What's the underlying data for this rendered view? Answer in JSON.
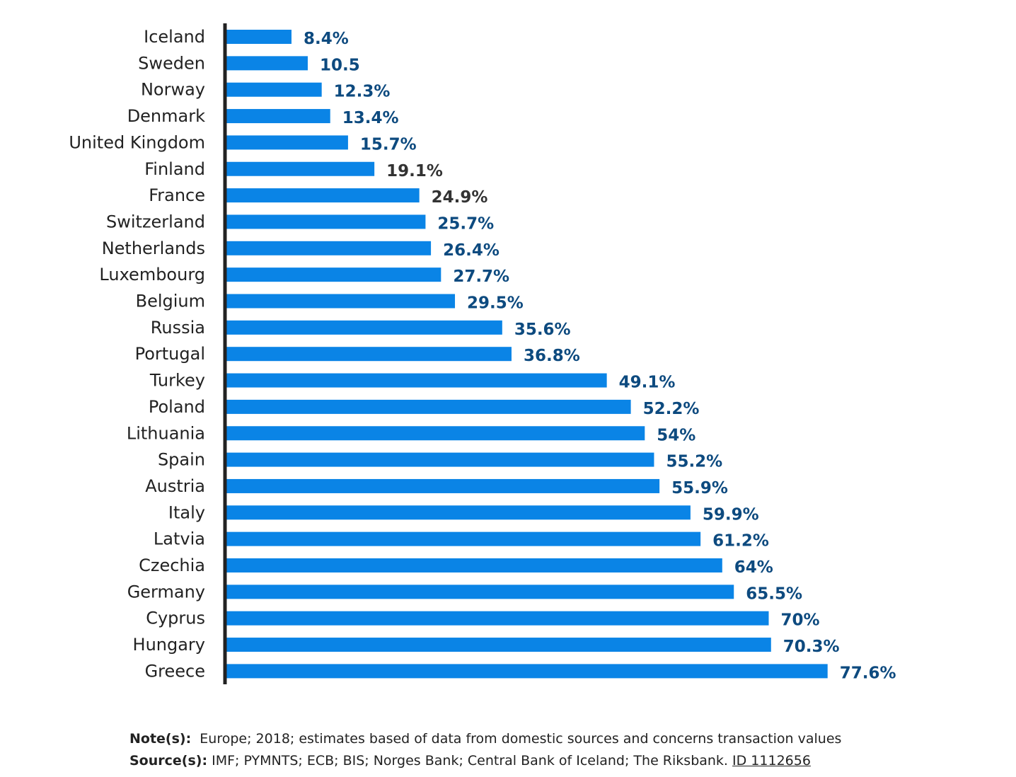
{
  "chart_data": {
    "type": "bar",
    "orientation": "horizontal",
    "categories": [
      "Iceland",
      "Sweden",
      "Norway",
      "Denmark",
      "United Kingdom",
      "Finland",
      "France",
      "Switzerland",
      "Netherlands",
      "Luxembourg",
      "Belgium",
      "Russia",
      "Portugal",
      "Turkey",
      "Poland",
      "Lithuania",
      "Spain",
      "Austria",
      "Italy",
      "Latvia",
      "Czechia",
      "Germany",
      "Cyprus",
      "Hungary",
      "Greece"
    ],
    "values": [
      8.4,
      10.5,
      12.3,
      13.4,
      15.7,
      19.1,
      24.9,
      25.7,
      26.4,
      27.7,
      29.5,
      35.6,
      36.8,
      49.1,
      52.2,
      54,
      55.2,
      55.9,
      59.9,
      61.2,
      64,
      65.5,
      70,
      70.3,
      77.6
    ],
    "data_labels": [
      "8.4%",
      "10.5",
      "12.3%",
      "13.4%",
      "15.7%",
      "19.1%",
      "24.9%",
      "25.7%",
      "26.4%",
      "27.7%",
      "29.5%",
      "35.6%",
      "36.8%",
      "49.1%",
      "52.2%",
      "54%",
      "55.2%",
      "55.9%",
      "59.9%",
      "61.2%",
      "64%",
      "65.5%",
      "70%",
      "70.3%",
      "77.6%"
    ],
    "label_colors": [
      "#0d4a7f",
      "#0d4a7f",
      "#0d4a7f",
      "#0d4a7f",
      "#0d4a7f",
      "#333333",
      "#333333",
      "#0d4a7f",
      "#0d4a7f",
      "#0d4a7f",
      "#0d4a7f",
      "#0d4a7f",
      "#0d4a7f",
      "#0d4a7f",
      "#0d4a7f",
      "#0d4a7f",
      "#0d4a7f",
      "#0d4a7f",
      "#0d4a7f",
      "#0d4a7f",
      "#0d4a7f",
      "#0d4a7f",
      "#0d4a7f",
      "#0d4a7f",
      "#0d4a7f"
    ],
    "xlim": [
      0,
      80
    ],
    "grid": false,
    "legend": "none",
    "bar_color": "#0a84e6",
    "axis_color": "#222222"
  },
  "notes": {
    "note_label": "Note(s):",
    "note_text": "Europe; 2018; estimates based of data from domestic sources and concerns transaction values",
    "source_label": "Source(s):",
    "source_text": "IMF; PYMNTS; ECB; BIS; Norges Bank; Central Bank of Iceland; The Riksbank.",
    "id_text": "ID 1112656"
  }
}
